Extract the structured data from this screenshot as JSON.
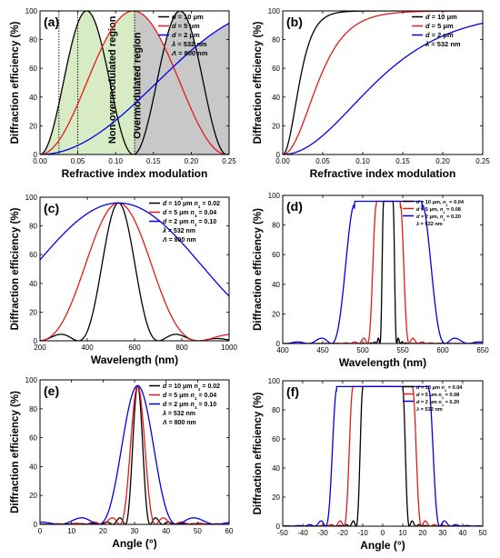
{
  "chart_data": [
    {
      "panel": "(a)",
      "type": "line",
      "xlabel": "Refractive index modulation",
      "ylabel": "Diffraction efficiency (%)",
      "xlim": [
        0,
        0.25
      ],
      "ylim": [
        0,
        100
      ],
      "xticks": [
        "0.00",
        "0.05",
        "0.10",
        "0.15",
        "0.20",
        "0.25"
      ],
      "yticks": [
        "0",
        "20",
        "40",
        "60",
        "80",
        "100"
      ],
      "legend_position": "top-right",
      "series": [
        {
          "name": "d = 10 μm",
          "italic": "d",
          "rest": " = 10 μm",
          "color": "#000000",
          "model": "kogelnik_index",
          "thickness_um": 10
        },
        {
          "name": "d = 5 μm",
          "italic": "d",
          "rest": " = 5 μm",
          "color": "#e41a1c",
          "model": "kogelnik_index",
          "thickness_um": 5
        },
        {
          "name": "d = 2 μm",
          "italic": "d",
          "rest": " = 2 μm",
          "color": "#0000ee",
          "model": "kogelnik_index",
          "thickness_um": 2
        }
      ],
      "params": [
        {
          "text": "λ = 532 nm",
          "italic": "λ",
          "rest": " = 532 nm"
        },
        {
          "text": "Λ = 800 nm",
          "italic": "Λ",
          "rest": " = 800 nm"
        }
      ],
      "regions": [
        {
          "label": "Non-overmodulated region",
          "from": 0.0,
          "to": 0.125,
          "color": "#d7ecc4"
        },
        {
          "label": "Overmodulated region",
          "from": 0.125,
          "to": 0.25,
          "color": "#c8c8c8"
        }
      ]
    },
    {
      "panel": "(b)",
      "type": "line",
      "xlabel": "Refractive index modulation",
      "ylabel": "Diffraction efficiency (%)",
      "xlim": [
        0,
        0.25
      ],
      "ylim": [
        0,
        100
      ],
      "xticks": [
        "0.00",
        "0.05",
        "0.10",
        "0.15",
        "0.20",
        "0.25"
      ],
      "yticks": [
        "0",
        "20",
        "40",
        "60",
        "80",
        "100"
      ],
      "legend_position": "top-right",
      "series": [
        {
          "name": "d = 10 μm",
          "italic": "d",
          "rest": " = 10 μm",
          "color": "#000000",
          "model": "saturating",
          "thickness_um": 10
        },
        {
          "name": "d = 5 μm",
          "italic": "d",
          "rest": " = 5 μm",
          "color": "#e41a1c",
          "model": "saturating",
          "thickness_um": 5
        },
        {
          "name": "d = 2 μm",
          "italic": "d",
          "rest": " = 2 μm",
          "color": "#0000ee",
          "model": "saturating",
          "thickness_um": 2
        }
      ],
      "params": [
        {
          "text": "λ = 532 nm",
          "italic": "λ",
          "rest": " = 532 nm"
        }
      ]
    },
    {
      "panel": "(c)",
      "type": "line",
      "xlabel": "Wavelength (nm)",
      "ylabel": "Diffraction efficiency (%)",
      "xlim": [
        200,
        1000
      ],
      "ylim": [
        0,
        100
      ],
      "xticks": [
        "200",
        "400",
        "600",
        "800",
        "1000"
      ],
      "yticks": [
        "0",
        "20",
        "40",
        "60",
        "80",
        "100"
      ],
      "legend_position": "top-right",
      "series": [
        {
          "name": "d = 10 μm n1 = 0.02",
          "italic": "d",
          "rest": " = 10 μm",
          "nlabel": " = 0.02",
          "color": "#000000",
          "model": "sinc_peak",
          "center": 532,
          "fwhm": 150,
          "peak": 96
        },
        {
          "name": "d = 5 μm n1 = 0.04",
          "italic": "d",
          "rest": " = 5 μm",
          "nlabel": " = 0.04",
          "color": "#e41a1c",
          "model": "sinc_peak",
          "center": 532,
          "fwhm": 300,
          "peak": 96
        },
        {
          "name": "d = 2 μm n1 = 0.10",
          "italic": "d",
          "rest": " = 2 μm",
          "nlabel": " = 0.10",
          "color": "#0000ee",
          "model": "sinc_peak",
          "center": 532,
          "fwhm": 750,
          "peak": 96
        }
      ],
      "params": [
        {
          "text": "λ = 532 nm",
          "italic": "λ",
          "rest": " = 532 nm"
        },
        {
          "text": "Λ = 800 nm",
          "italic": "Λ",
          "rest": " = 800 nm"
        }
      ]
    },
    {
      "panel": "(d)",
      "type": "line",
      "xlabel": "Wavelength (nm)",
      "ylabel": "Diffraction efficiency (%)",
      "xlim": [
        400,
        650
      ],
      "ylim": [
        0,
        100
      ],
      "xticks": [
        "400",
        "450",
        "500",
        "550",
        "600",
        "650"
      ],
      "yticks": [
        "0",
        "20",
        "40",
        "60",
        "80",
        "100"
      ],
      "legend_position": "top-right",
      "series": [
        {
          "name": "d = 10 μm, n1 = 0.04",
          "italic": "d",
          "rest": " = 10 μm,",
          "nlabel": " = 0.04",
          "color": "#000000",
          "model": "flat_top",
          "center": 532,
          "halfwidth": 6,
          "peak": 96,
          "ripple": 4.5
        },
        {
          "name": "d = 5 μm, n1 = 0.08",
          "italic": "d",
          "rest": " = 5 μm,",
          "nlabel": " = 0.08",
          "color": "#e41a1c",
          "model": "flat_top",
          "center": 532,
          "halfwidth": 15,
          "peak": 96,
          "ripple": 11
        },
        {
          "name": "d = 2 μm, n1 = 0.20",
          "italic": "d",
          "rest": " = 2 μm,",
          "nlabel": " = 0.20",
          "color": "#0000ee",
          "model": "flat_top",
          "center": 532,
          "halfwidth": 42,
          "peak": 96,
          "ripple": 29
        }
      ],
      "params": [
        {
          "text": "λ = 532 nm",
          "italic": "λ",
          "rest": " = 532 nm"
        }
      ]
    },
    {
      "panel": "(e)",
      "type": "line",
      "xlabel": "Angle (°)",
      "ylabel": "Diffraction efficiency (%)",
      "xlim": [
        0,
        60
      ],
      "ylim": [
        0,
        100
      ],
      "xticks": [
        "0",
        "10",
        "20",
        "30",
        "40",
        "50",
        "60"
      ],
      "yticks": [
        "0",
        "20",
        "40",
        "60",
        "80",
        "100"
      ],
      "legend_position": "top-right",
      "series": [
        {
          "name": "d = 10 μm n1 = 0.02",
          "italic": "d",
          "rest": " = 10 μm",
          "nlabel": " = 0.02",
          "color": "#000000",
          "model": "sinc_peak",
          "center": 31,
          "fwhm": 3.5,
          "peak": 96
        },
        {
          "name": "d = 5 μm n1 = 0.04",
          "italic": "d",
          "rest": " = 5 μm",
          "nlabel": " = 0.04",
          "color": "#e41a1c",
          "model": "sinc_peak",
          "center": 31,
          "fwhm": 5,
          "peak": 96
        },
        {
          "name": "d = 2 μm n1 = 0.10",
          "italic": "d",
          "rest": " = 2 μm",
          "nlabel": " = 0.10",
          "color": "#0000ee",
          "model": "sinc_peak",
          "center": 31,
          "fwhm": 11,
          "peak": 96
        }
      ],
      "params": [
        {
          "text": "λ = 532 nm",
          "italic": "λ",
          "rest": " = 532 nm"
        },
        {
          "text": "Λ = 800 nm",
          "italic": "Λ",
          "rest": " = 800 nm"
        }
      ]
    },
    {
      "panel": "(f)",
      "type": "line",
      "xlabel": "Angle (°)",
      "ylabel": "Diffraction efficiency (%)",
      "xlim": [
        -50,
        50
      ],
      "ylim": [
        0,
        100
      ],
      "xticks": [
        "-50",
        "-40",
        "-30",
        "-20",
        "-10",
        "0",
        "10",
        "20",
        "30",
        "40",
        "50"
      ],
      "yticks": [
        "0",
        "20",
        "40",
        "60",
        "80",
        "100"
      ],
      "legend_position": "top-right",
      "series": [
        {
          "name": "d = 10 μm n1 = 0.04",
          "italic": "d",
          "rest": " = 10 μm",
          "nlabel": " = 0.04",
          "color": "#000000",
          "model": "flat_top",
          "center": 0,
          "halfwidth": 10,
          "peak": 96,
          "ripple": 3.3
        },
        {
          "name": "d = 5 μm n1 = 0.08",
          "italic": "d",
          "rest": " = 5 μm",
          "nlabel": " = 0.08",
          "color": "#e41a1c",
          "model": "flat_top",
          "center": 0,
          "halfwidth": 15,
          "peak": 96,
          "ripple": 4.4
        },
        {
          "name": "d = 2 μm n1 = 0.20",
          "italic": "d",
          "rest": " = 2 μm",
          "nlabel": " = 0.20",
          "color": "#0000ee",
          "model": "flat_top",
          "center": 0,
          "halfwidth": 23,
          "peak": 96,
          "ripple": 5.5
        }
      ],
      "params": [
        {
          "text": "λ = 532 nm",
          "italic": "λ",
          "rest": " = 532 nm"
        }
      ]
    }
  ]
}
